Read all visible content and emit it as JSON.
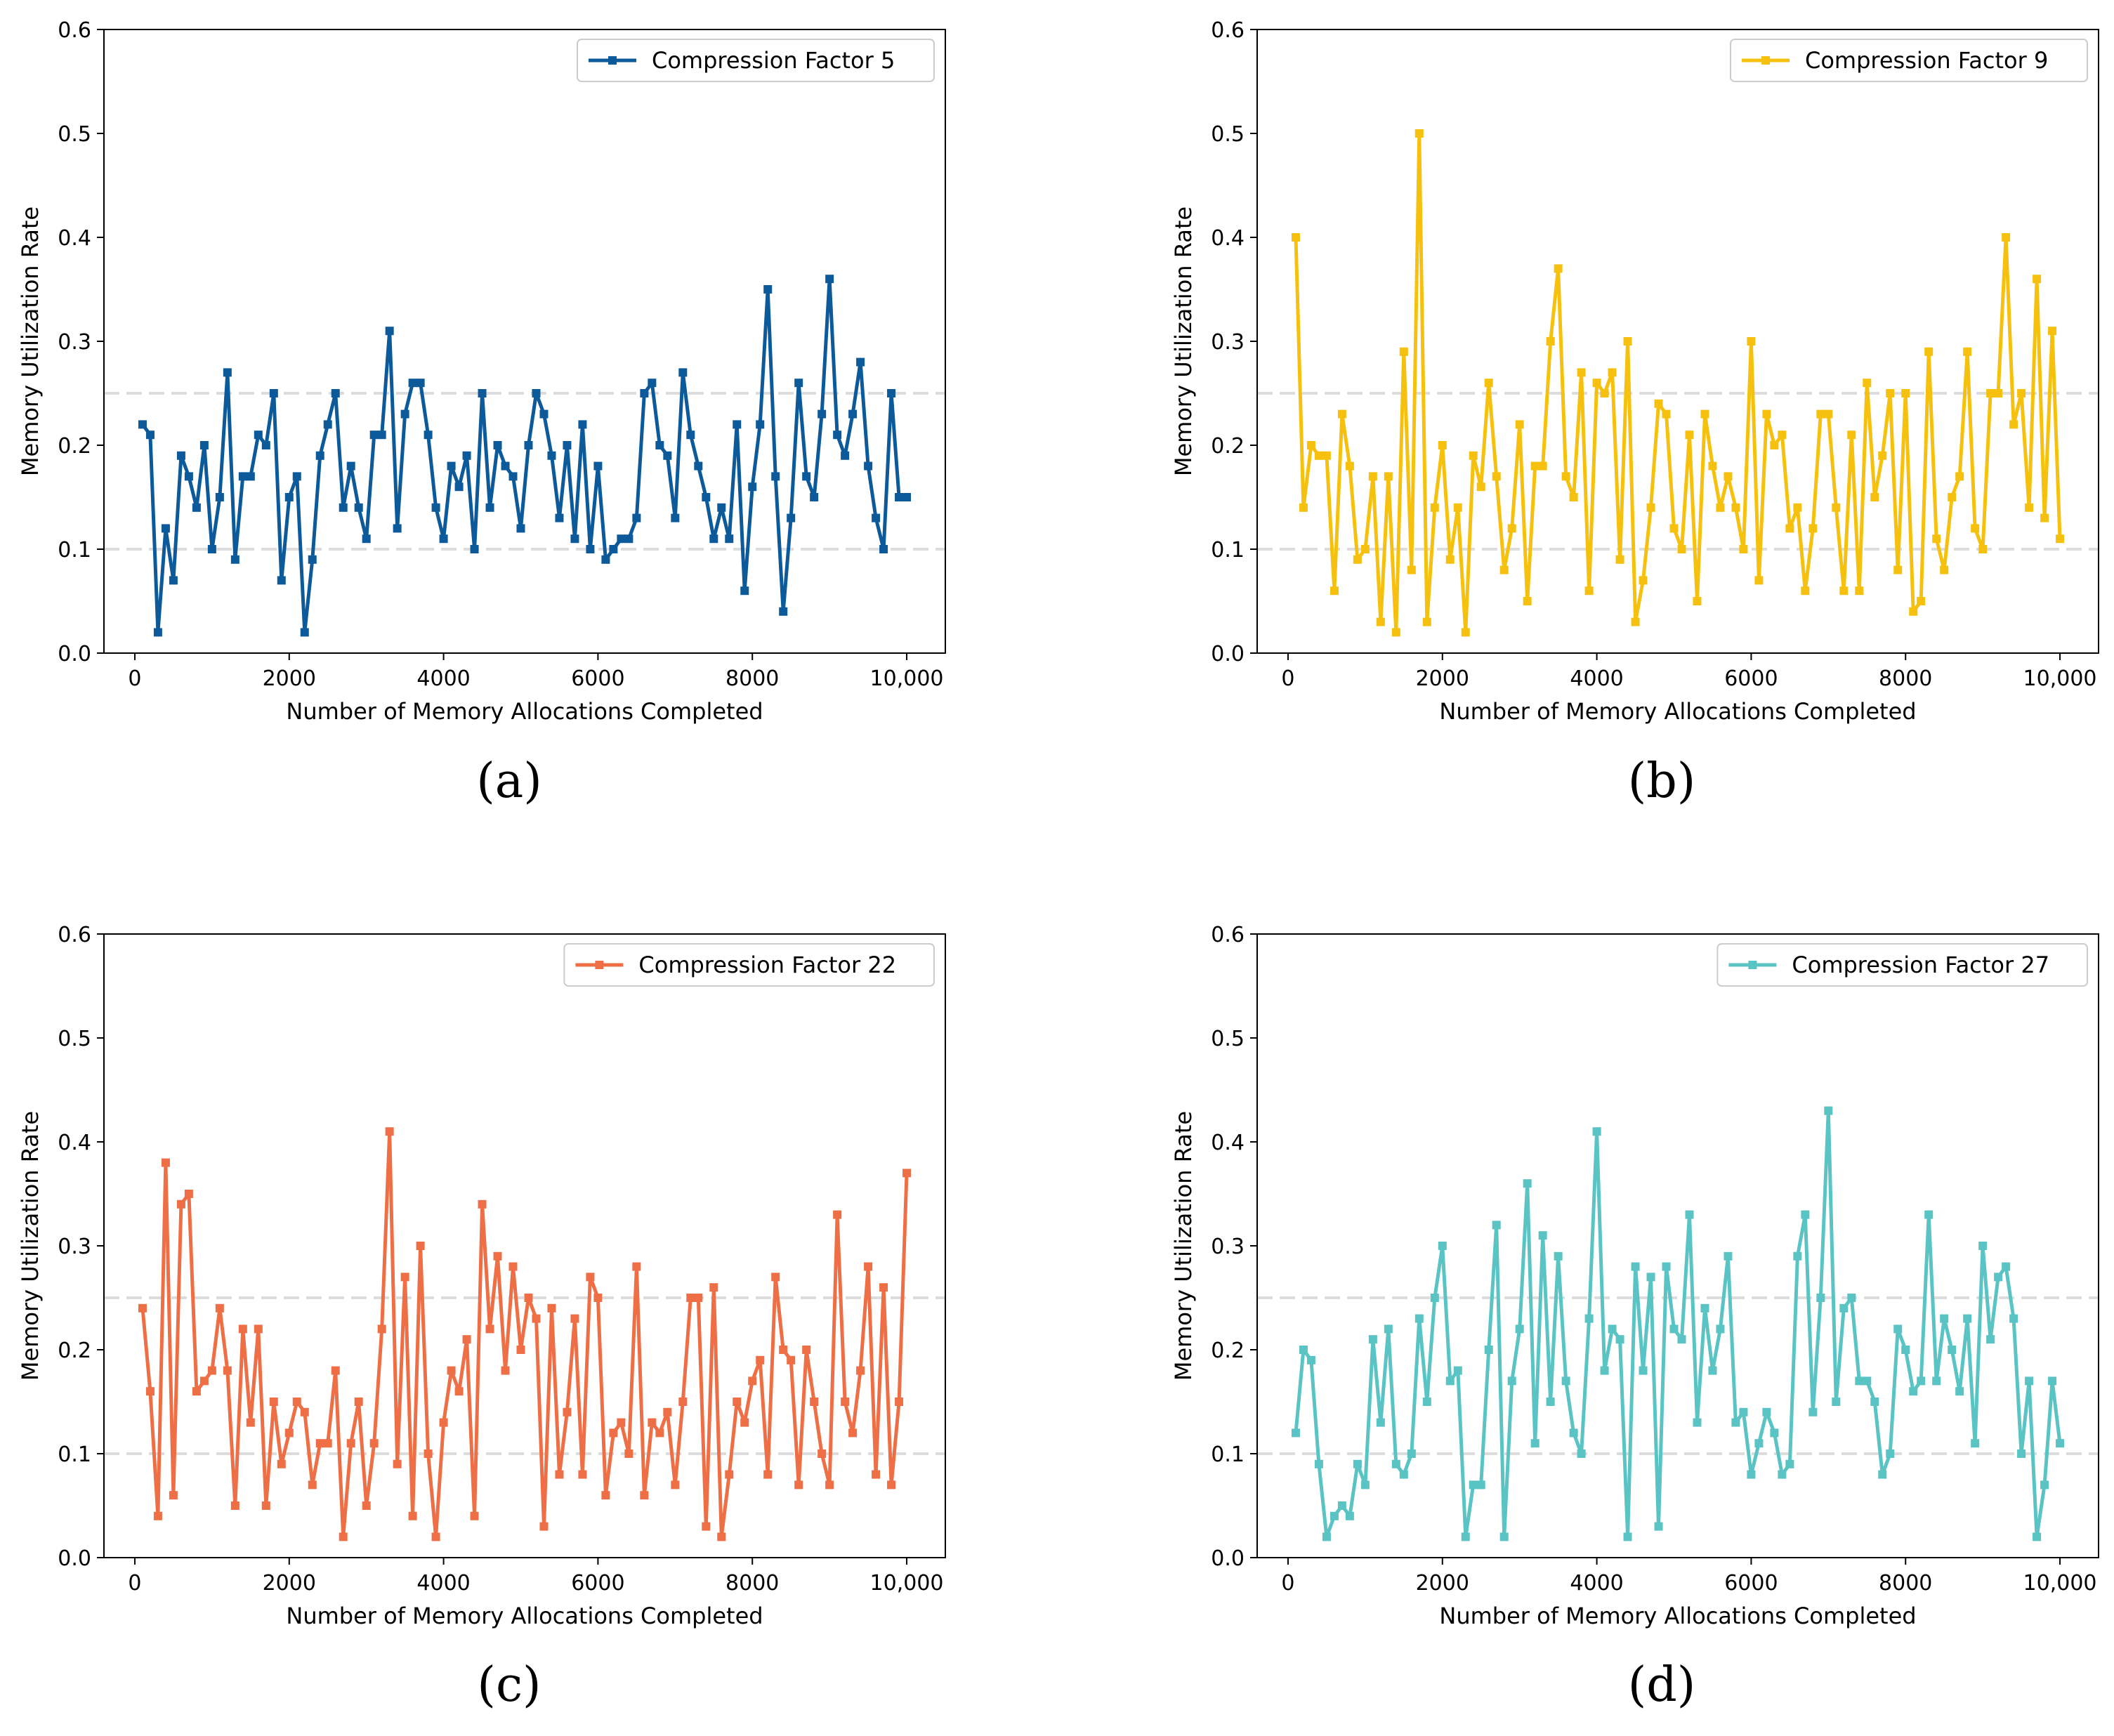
{
  "chart_data": [
    {
      "id": "a",
      "type": "line",
      "caption": "(a)",
      "title": "",
      "xlabel": "Number of Memory Allocations Completed",
      "ylabel": "Memory Utilization Rate",
      "xlim": [
        -400,
        10500
      ],
      "ylim": [
        0.0,
        0.6
      ],
      "xticks": [
        0,
        2000,
        4000,
        6000,
        8000,
        10000
      ],
      "xtick_labels": [
        "0",
        "2000",
        "4000",
        "6000",
        "8000",
        "10,000"
      ],
      "yticks": [
        0.0,
        0.1,
        0.2,
        0.3,
        0.4,
        0.5,
        0.6
      ],
      "ytick_labels": [
        "0.0",
        "0.1",
        "0.2",
        "0.3",
        "0.4",
        "0.5",
        "0.6"
      ],
      "reference_lines": [
        0.1,
        0.25
      ],
      "legend_position": "top-right",
      "series": [
        {
          "name": "Compression Factor 5",
          "color": "#0d5a9b",
          "x": [
            100,
            200,
            300,
            400,
            500,
            600,
            700,
            800,
            900,
            1000,
            1100,
            1200,
            1300,
            1400,
            1500,
            1600,
            1700,
            1800,
            1900,
            2000,
            2100,
            2200,
            2300,
            2400,
            2500,
            2600,
            2700,
            2800,
            2900,
            3000,
            3100,
            3200,
            3300,
            3400,
            3500,
            3600,
            3700,
            3800,
            3900,
            4000,
            4100,
            4200,
            4300,
            4400,
            4500,
            4600,
            4700,
            4800,
            4900,
            5000,
            5100,
            5200,
            5300,
            5400,
            5500,
            5600,
            5700,
            5800,
            5900,
            6000,
            6100,
            6200,
            6300,
            6400,
            6500,
            6600,
            6700,
            6800,
            6900,
            7000,
            7100,
            7200,
            7300,
            7400,
            7500,
            7600,
            7700,
            7800,
            7900,
            8000,
            8100,
            8200,
            8300,
            8400,
            8500,
            8600,
            8700,
            8800,
            8900,
            9000,
            9100,
            9200,
            9300,
            9400,
            9500,
            9600,
            9700,
            9800,
            9900,
            10000
          ],
          "values": [
            0.22,
            0.21,
            0.02,
            0.12,
            0.07,
            0.19,
            0.17,
            0.14,
            0.2,
            0.1,
            0.15,
            0.27,
            0.09,
            0.17,
            0.17,
            0.21,
            0.2,
            0.25,
            0.07,
            0.15,
            0.17,
            0.02,
            0.09,
            0.19,
            0.22,
            0.25,
            0.14,
            0.18,
            0.14,
            0.11,
            0.21,
            0.21,
            0.31,
            0.12,
            0.23,
            0.26,
            0.26,
            0.21,
            0.14,
            0.11,
            0.18,
            0.16,
            0.19,
            0.1,
            0.25,
            0.14,
            0.2,
            0.18,
            0.17,
            0.12,
            0.2,
            0.25,
            0.23,
            0.19,
            0.13,
            0.2,
            0.11,
            0.22,
            0.1,
            0.18,
            0.09,
            0.1,
            0.11,
            0.11,
            0.13,
            0.25,
            0.26,
            0.2,
            0.19,
            0.13,
            0.27,
            0.21,
            0.18,
            0.15,
            0.11,
            0.14,
            0.11,
            0.22,
            0.06,
            0.16,
            0.22,
            0.35,
            0.17,
            0.04,
            0.13,
            0.26,
            0.17,
            0.15,
            0.23,
            0.36,
            0.21,
            0.19,
            0.23,
            0.28,
            0.18,
            0.13,
            0.1,
            0.25,
            0.15,
            0.15
          ]
        }
      ]
    },
    {
      "id": "b",
      "type": "line",
      "caption": "(b)",
      "title": "",
      "xlabel": "Number of Memory Allocations Completed",
      "ylabel": "Memory Utilization Rate",
      "xlim": [
        -400,
        10500
      ],
      "ylim": [
        0.0,
        0.6
      ],
      "xticks": [
        0,
        2000,
        4000,
        6000,
        8000,
        10000
      ],
      "xtick_labels": [
        "0",
        "2000",
        "4000",
        "6000",
        "8000",
        "10,000"
      ],
      "yticks": [
        0.0,
        0.1,
        0.2,
        0.3,
        0.4,
        0.5,
        0.6
      ],
      "ytick_labels": [
        "0.0",
        "0.1",
        "0.2",
        "0.3",
        "0.4",
        "0.5",
        "0.6"
      ],
      "reference_lines": [
        0.1,
        0.25
      ],
      "legend_position": "top-right",
      "series": [
        {
          "name": "Compression Factor 9",
          "color": "#f5c10e",
          "x": [
            100,
            200,
            300,
            400,
            500,
            600,
            700,
            800,
            900,
            1000,
            1100,
            1200,
            1300,
            1400,
            1500,
            1600,
            1700,
            1800,
            1900,
            2000,
            2100,
            2200,
            2300,
            2400,
            2500,
            2600,
            2700,
            2800,
            2900,
            3000,
            3100,
            3200,
            3300,
            3400,
            3500,
            3600,
            3700,
            3800,
            3900,
            4000,
            4100,
            4200,
            4300,
            4400,
            4500,
            4600,
            4700,
            4800,
            4900,
            5000,
            5100,
            5200,
            5300,
            5400,
            5500,
            5600,
            5700,
            5800,
            5900,
            6000,
            6100,
            6200,
            6300,
            6400,
            6500,
            6600,
            6700,
            6800,
            6900,
            7000,
            7100,
            7200,
            7300,
            7400,
            7500,
            7600,
            7700,
            7800,
            7900,
            8000,
            8100,
            8200,
            8300,
            8400,
            8500,
            8600,
            8700,
            8800,
            8900,
            9000,
            9100,
            9200,
            9300,
            9400,
            9500,
            9600,
            9700,
            9800,
            9900,
            10000
          ],
          "values": [
            0.4,
            0.14,
            0.2,
            0.19,
            0.19,
            0.06,
            0.23,
            0.18,
            0.09,
            0.1,
            0.17,
            0.03,
            0.17,
            0.02,
            0.29,
            0.08,
            0.5,
            0.03,
            0.14,
            0.2,
            0.09,
            0.14,
            0.02,
            0.19,
            0.16,
            0.26,
            0.17,
            0.08,
            0.12,
            0.22,
            0.05,
            0.18,
            0.18,
            0.3,
            0.37,
            0.17,
            0.15,
            0.27,
            0.06,
            0.26,
            0.25,
            0.27,
            0.09,
            0.3,
            0.03,
            0.07,
            0.14,
            0.24,
            0.23,
            0.12,
            0.1,
            0.21,
            0.05,
            0.23,
            0.18,
            0.14,
            0.17,
            0.14,
            0.1,
            0.3,
            0.07,
            0.23,
            0.2,
            0.21,
            0.12,
            0.14,
            0.06,
            0.12,
            0.23,
            0.23,
            0.14,
            0.06,
            0.21,
            0.06,
            0.26,
            0.15,
            0.19,
            0.25,
            0.08,
            0.25,
            0.04,
            0.05,
            0.29,
            0.11,
            0.08,
            0.15,
            0.17,
            0.29,
            0.12,
            0.1,
            0.25,
            0.25,
            0.4,
            0.22,
            0.25,
            0.14,
            0.36,
            0.13,
            0.31,
            0.11
          ]
        }
      ]
    },
    {
      "id": "c",
      "type": "line",
      "caption": "(c)",
      "title": "",
      "xlabel": "Number of Memory Allocations Completed",
      "ylabel": "Memory Utilization Rate",
      "xlim": [
        -400,
        10500
      ],
      "ylim": [
        0.0,
        0.6
      ],
      "xticks": [
        0,
        2000,
        4000,
        6000,
        8000,
        10000
      ],
      "xtick_labels": [
        "0",
        "2000",
        "4000",
        "6000",
        "8000",
        "10,000"
      ],
      "yticks": [
        0.0,
        0.1,
        0.2,
        0.3,
        0.4,
        0.5,
        0.6
      ],
      "ytick_labels": [
        "0.0",
        "0.1",
        "0.2",
        "0.3",
        "0.4",
        "0.5",
        "0.6"
      ],
      "reference_lines": [
        0.1,
        0.25
      ],
      "legend_position": "top-right",
      "series": [
        {
          "name": "Compression Factor 22",
          "color": "#ee6f46",
          "x": [
            100,
            200,
            300,
            400,
            500,
            600,
            700,
            800,
            900,
            1000,
            1100,
            1200,
            1300,
            1400,
            1500,
            1600,
            1700,
            1800,
            1900,
            2000,
            2100,
            2200,
            2300,
            2400,
            2500,
            2600,
            2700,
            2800,
            2900,
            3000,
            3100,
            3200,
            3300,
            3400,
            3500,
            3600,
            3700,
            3800,
            3900,
            4000,
            4100,
            4200,
            4300,
            4400,
            4500,
            4600,
            4700,
            4800,
            4900,
            5000,
            5100,
            5200,
            5300,
            5400,
            5500,
            5600,
            5700,
            5800,
            5900,
            6000,
            6100,
            6200,
            6300,
            6400,
            6500,
            6600,
            6700,
            6800,
            6900,
            7000,
            7100,
            7200,
            7300,
            7400,
            7500,
            7600,
            7700,
            7800,
            7900,
            8000,
            8100,
            8200,
            8300,
            8400,
            8500,
            8600,
            8700,
            8800,
            8900,
            9000,
            9100,
            9200,
            9300,
            9400,
            9500,
            9600,
            9700,
            9800,
            9900,
            10000
          ],
          "values": [
            0.24,
            0.16,
            0.04,
            0.38,
            0.06,
            0.34,
            0.35,
            0.16,
            0.17,
            0.18,
            0.24,
            0.18,
            0.05,
            0.22,
            0.13,
            0.22,
            0.05,
            0.15,
            0.09,
            0.12,
            0.15,
            0.14,
            0.07,
            0.11,
            0.11,
            0.18,
            0.02,
            0.11,
            0.15,
            0.05,
            0.11,
            0.22,
            0.41,
            0.09,
            0.27,
            0.04,
            0.3,
            0.1,
            0.02,
            0.13,
            0.18,
            0.16,
            0.21,
            0.04,
            0.34,
            0.22,
            0.29,
            0.18,
            0.28,
            0.2,
            0.25,
            0.23,
            0.03,
            0.24,
            0.08,
            0.14,
            0.23,
            0.08,
            0.27,
            0.25,
            0.06,
            0.12,
            0.13,
            0.1,
            0.28,
            0.06,
            0.13,
            0.12,
            0.14,
            0.07,
            0.15,
            0.25,
            0.25,
            0.03,
            0.26,
            0.02,
            0.08,
            0.15,
            0.13,
            0.17,
            0.19,
            0.08,
            0.27,
            0.2,
            0.19,
            0.07,
            0.2,
            0.15,
            0.1,
            0.07,
            0.33,
            0.15,
            0.12,
            0.18,
            0.28,
            0.08,
            0.26,
            0.07,
            0.15,
            0.37
          ]
        }
      ]
    },
    {
      "id": "d",
      "type": "line",
      "caption": "(d)",
      "title": "",
      "xlabel": "Number of Memory Allocations Completed",
      "ylabel": "Memory Utilization Rate",
      "xlim": [
        -400,
        10500
      ],
      "ylim": [
        0.0,
        0.6
      ],
      "xticks": [
        0,
        2000,
        4000,
        6000,
        8000,
        10000
      ],
      "xtick_labels": [
        "0",
        "2000",
        "4000",
        "6000",
        "8000",
        "10,000"
      ],
      "yticks": [
        0.0,
        0.1,
        0.2,
        0.3,
        0.4,
        0.5,
        0.6
      ],
      "ytick_labels": [
        "0.0",
        "0.1",
        "0.2",
        "0.3",
        "0.4",
        "0.5",
        "0.6"
      ],
      "reference_lines": [
        0.1,
        0.25
      ],
      "legend_position": "top-right",
      "series": [
        {
          "name": "Compression Factor 27",
          "color": "#5ac3c3",
          "x": [
            100,
            200,
            300,
            400,
            500,
            600,
            700,
            800,
            900,
            1000,
            1100,
            1200,
            1300,
            1400,
            1500,
            1600,
            1700,
            1800,
            1900,
            2000,
            2100,
            2200,
            2300,
            2400,
            2500,
            2600,
            2700,
            2800,
            2900,
            3000,
            3100,
            3200,
            3300,
            3400,
            3500,
            3600,
            3700,
            3800,
            3900,
            4000,
            4100,
            4200,
            4300,
            4400,
            4500,
            4600,
            4700,
            4800,
            4900,
            5000,
            5100,
            5200,
            5300,
            5400,
            5500,
            5600,
            5700,
            5800,
            5900,
            6000,
            6100,
            6200,
            6300,
            6400,
            6500,
            6600,
            6700,
            6800,
            6900,
            7000,
            7100,
            7200,
            7300,
            7400,
            7500,
            7600,
            7700,
            7800,
            7900,
            8000,
            8100,
            8200,
            8300,
            8400,
            8500,
            8600,
            8700,
            8800,
            8900,
            9000,
            9100,
            9200,
            9300,
            9400,
            9500,
            9600,
            9700,
            9800,
            9900,
            10000
          ],
          "values": [
            0.12,
            0.2,
            0.19,
            0.09,
            0.02,
            0.04,
            0.05,
            0.04,
            0.09,
            0.07,
            0.21,
            0.13,
            0.22,
            0.09,
            0.08,
            0.1,
            0.23,
            0.15,
            0.25,
            0.3,
            0.17,
            0.18,
            0.02,
            0.07,
            0.07,
            0.2,
            0.32,
            0.02,
            0.17,
            0.22,
            0.36,
            0.11,
            0.31,
            0.15,
            0.29,
            0.17,
            0.12,
            0.1,
            0.23,
            0.41,
            0.18,
            0.22,
            0.21,
            0.02,
            0.28,
            0.18,
            0.27,
            0.03,
            0.28,
            0.22,
            0.21,
            0.33,
            0.13,
            0.24,
            0.18,
            0.22,
            0.29,
            0.13,
            0.14,
            0.08,
            0.11,
            0.14,
            0.12,
            0.08,
            0.09,
            0.29,
            0.33,
            0.14,
            0.25,
            0.43,
            0.15,
            0.24,
            0.25,
            0.17,
            0.17,
            0.15,
            0.08,
            0.1,
            0.22,
            0.2,
            0.16,
            0.17,
            0.33,
            0.17,
            0.23,
            0.2,
            0.16,
            0.23,
            0.11,
            0.3,
            0.21,
            0.27,
            0.28,
            0.23,
            0.1,
            0.17,
            0.02,
            0.07,
            0.17,
            0.11
          ]
        }
      ]
    }
  ]
}
